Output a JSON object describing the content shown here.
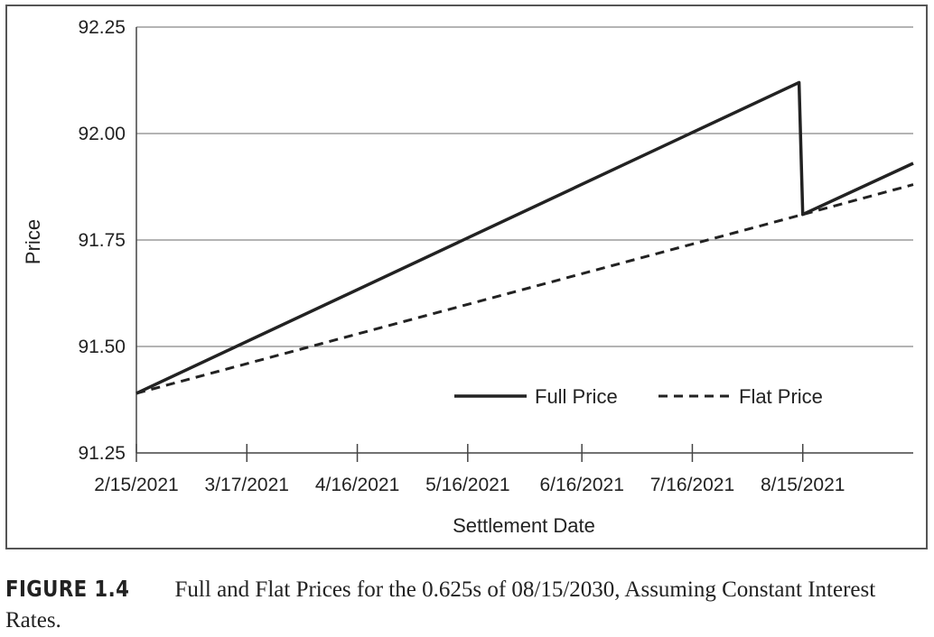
{
  "chart_data": {
    "type": "line",
    "xlabel": "Settlement Date",
    "ylabel": "Price",
    "ylim": [
      91.25,
      92.25
    ],
    "yticks": [
      "91.25",
      "91.50",
      "91.75",
      "92.00",
      "92.25"
    ],
    "x_tick_labels": [
      "2/15/2021",
      "3/17/2021",
      "4/16/2021",
      "5/16/2021",
      "6/16/2021",
      "7/16/2021",
      "8/15/2021"
    ],
    "x_tick_days": [
      0,
      30,
      60,
      90,
      121,
      151,
      181
    ],
    "xlim_days": [
      0,
      211
    ],
    "grid": "horizontal",
    "legend_position": "bottom-right inside",
    "series": [
      {
        "name": "Full Price",
        "style": "solid",
        "points": [
          {
            "x": "2/15/2021",
            "y": 91.39
          },
          {
            "x": "8/14/2021",
            "y": 92.12
          },
          {
            "x": "8/15/2021",
            "y": 91.81
          },
          {
            "x": "9/14/2021",
            "y": 91.93
          }
        ]
      },
      {
        "name": "Flat Price",
        "style": "dashed",
        "points": [
          {
            "x": "2/15/2021",
            "y": 91.39
          },
          {
            "x": "8/15/2021",
            "y": 91.81
          },
          {
            "x": "9/14/2021",
            "y": 91.88
          }
        ]
      }
    ]
  },
  "caption": {
    "label": "FIGURE 1.4",
    "text": "Full and Flat Prices for the 0.625s of 08/15/2030, Assuming Constant Interest Rates."
  }
}
